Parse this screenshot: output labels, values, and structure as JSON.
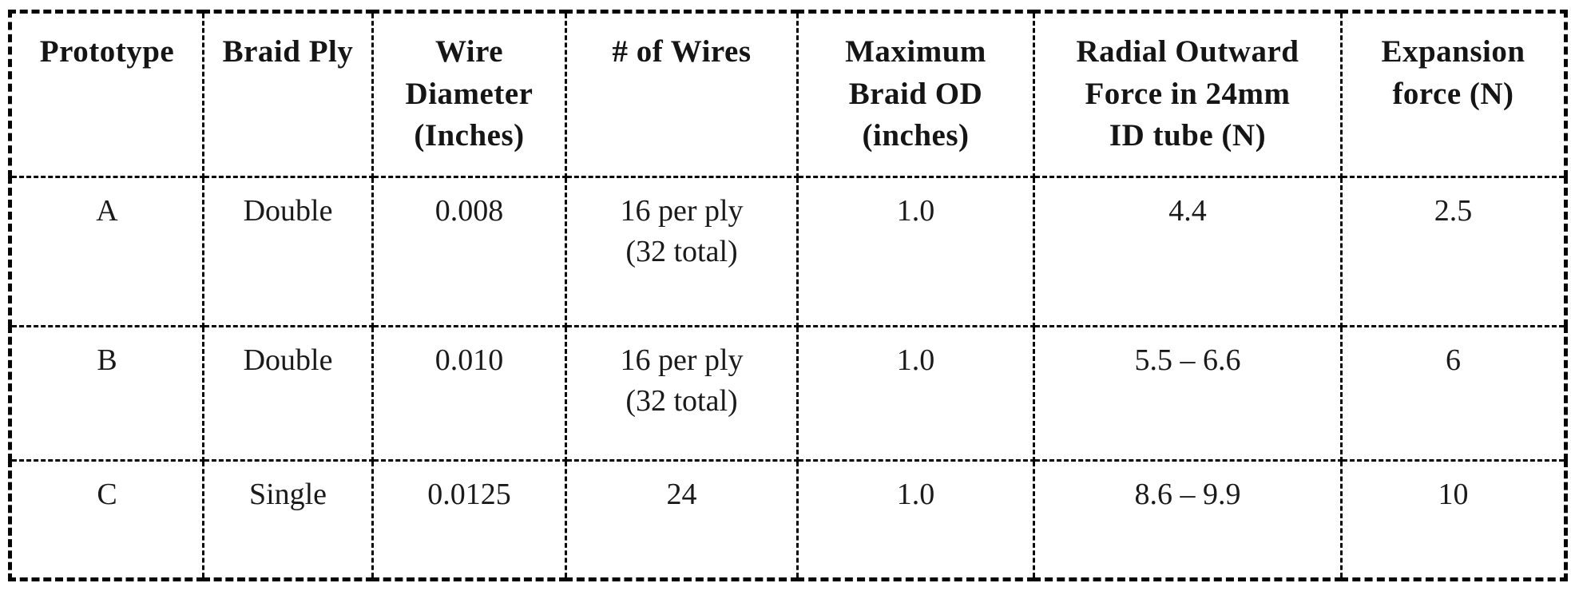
{
  "colors": {
    "background": "#ffffff",
    "text": "#1a1a1a",
    "border": "#050505"
  },
  "table": {
    "columns": [
      {
        "id": "prototype",
        "label": "Prototype"
      },
      {
        "id": "braid_ply",
        "label": "Braid Ply"
      },
      {
        "id": "wire_diameter",
        "label": "Wire\nDiameter\n(Inches)"
      },
      {
        "id": "num_wires",
        "label": "# of Wires"
      },
      {
        "id": "max_braid_od",
        "label": "Maximum\nBraid OD\n(inches)"
      },
      {
        "id": "radial_force",
        "label": "Radial Outward\nForce in 24mm\nID tube (N)"
      },
      {
        "id": "expansion_force",
        "label": "Expansion\nforce (N)"
      }
    ],
    "rows": [
      {
        "prototype": "A",
        "braid_ply": "Double",
        "wire_diameter": "0.008",
        "num_wires": "16 per ply\n(32 total)",
        "max_braid_od": "1.0",
        "radial_force": "4.4",
        "expansion_force": "2.5"
      },
      {
        "prototype": "B",
        "braid_ply": "Double",
        "wire_diameter": "0.010",
        "num_wires": "16 per ply\n(32 total)",
        "max_braid_od": "1.0",
        "radial_force": "5.5 – 6.6",
        "expansion_force": "6"
      },
      {
        "prototype": "C",
        "braid_ply": "Single",
        "wire_diameter": "0.0125",
        "num_wires": "24",
        "max_braid_od": "1.0",
        "radial_force": "8.6 – 9.9",
        "expansion_force": "10"
      }
    ]
  }
}
